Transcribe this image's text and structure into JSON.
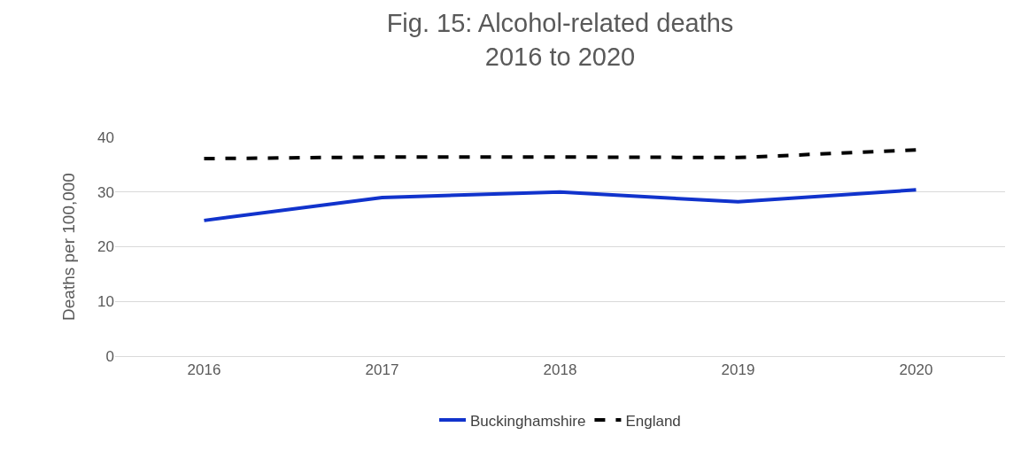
{
  "chart_data": {
    "type": "line",
    "title": "Fig. 15: Alcohol-related deaths\n2016 to 2020",
    "ylabel": "Deaths per 100,000",
    "categories": [
      "2016",
      "2017",
      "2018",
      "2019",
      "2020"
    ],
    "series": [
      {
        "name": "Buckinghamshire",
        "color": "#1133cc",
        "line_style": "solid",
        "values": [
          24.8,
          29.0,
          30.0,
          28.2,
          30.4
        ]
      },
      {
        "name": "England",
        "color": "#000000",
        "line_style": "dashed",
        "values": [
          36.1,
          36.4,
          36.4,
          36.3,
          37.7
        ]
      }
    ],
    "ylim": [
      0,
      40
    ],
    "yticks": [
      0,
      10,
      20,
      30,
      40
    ],
    "grid": "y",
    "legend": "bottom",
    "marker": "none"
  }
}
